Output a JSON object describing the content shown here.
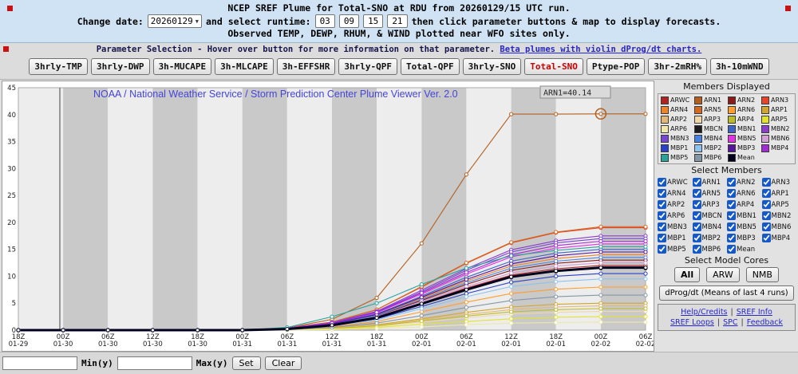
{
  "header": {
    "line1": "NCEP SREF Plume for Total-SNO at RDU from 20260129/15 UTC run.",
    "change_date_label": "Change date:",
    "date_value": "20260129",
    "runtime_label": "and select runtime:",
    "runtimes": [
      "03",
      "09",
      "15",
      "21"
    ],
    "line2_tail": "then click parameter buttons & map to display forecasts.",
    "line3": "Observed TEMP, DEWP, RHUM, & WIND plotted near WFO sites only."
  },
  "param_bar": {
    "info_text": "Parameter Selection - Hover over button for more information on that parameter.",
    "beta_link": "Beta plumes with violin dProg/dt charts.",
    "buttons": [
      "3hrly-TMP",
      "3hrly-DWP",
      "3h-MUCAPE",
      "3h-MLCAPE",
      "3h-EFFSHR",
      "3hrly-QPF",
      "Total-QPF",
      "3hrly-SNO",
      "Total-SNO",
      "Ptype-POP",
      "3hr-2mRH%",
      "3h-10mWND"
    ],
    "active_button": "Total-SNO"
  },
  "chart_data": {
    "type": "line",
    "title": "NOAA / National Weather Service / Storm Prediction Center Plume Viewer Ver. 2.0",
    "ylabel": "",
    "xlabel": "",
    "ylim": [
      0,
      45
    ],
    "yticks": [
      0,
      5,
      10,
      15,
      20,
      25,
      30,
      35,
      40,
      45
    ],
    "x_labels_time": [
      "18Z",
      "00Z",
      "06Z",
      "12Z",
      "18Z",
      "00Z",
      "06Z",
      "12Z",
      "18Z",
      "00Z",
      "06Z",
      "12Z",
      "18Z",
      "00Z",
      "06Z"
    ],
    "x_labels_date": [
      "01-29",
      "01-30",
      "01-30",
      "01-30",
      "01-30",
      "01-31",
      "01-31",
      "01-31",
      "01-31",
      "02-01",
      "02-01",
      "02-01",
      "02-01",
      "02-02",
      "02-02"
    ],
    "highlight": {
      "series": "ARN1",
      "x_index": 13,
      "value": 40.14,
      "label": "ARN1=40.14"
    },
    "series": [
      {
        "name": "ARWC",
        "color": "#b22222",
        "values": [
          0,
          0,
          0,
          0,
          0,
          0,
          0.2,
          1.0,
          2.4,
          5.0,
          7.8,
          10.2,
          11.4,
          12.0,
          12.0
        ]
      },
      {
        "name": "ARN1",
        "color": "#b45f1e",
        "values": [
          0,
          0,
          0,
          0,
          0,
          0,
          0.4,
          2.0,
          6.0,
          16.1,
          28.9,
          40.1,
          40.1,
          40.14,
          40.14
        ]
      },
      {
        "name": "ARN2",
        "color": "#8b1a1a",
        "values": [
          0,
          0,
          0,
          0,
          0,
          0,
          0.3,
          1.0,
          2.6,
          5.5,
          8.5,
          11.1,
          12.4,
          13.0,
          13.0
        ]
      },
      {
        "name": "ARN3",
        "color": "#e8442a",
        "values": [
          0,
          0,
          0,
          0,
          0,
          0,
          0.4,
          1.5,
          3.8,
          8.0,
          12.4,
          16.2,
          18.1,
          19.0,
          19.0
        ]
      },
      {
        "name": "ARN4",
        "color": "#f08228",
        "values": [
          0,
          0,
          0,
          0,
          0,
          0,
          0.3,
          1.1,
          2.8,
          5.9,
          9.1,
          11.9,
          13.3,
          14.0,
          14.0
        ]
      },
      {
        "name": "ARN5",
        "color": "#d2691e",
        "values": [
          0,
          0,
          0,
          0,
          0,
          0,
          0.4,
          1.5,
          3.8,
          8.1,
          12.5,
          16.3,
          18.2,
          19.2,
          19.2
        ]
      },
      {
        "name": "ARN6",
        "color": "#ff9d2e",
        "values": [
          0,
          0,
          0,
          0,
          0,
          0,
          0.2,
          0.6,
          1.6,
          3.4,
          5.2,
          6.8,
          7.6,
          8.0,
          8.0
        ]
      },
      {
        "name": "ARP1",
        "color": "#d2a62e",
        "values": [
          0,
          0,
          0,
          0,
          0,
          0,
          0.1,
          0.4,
          1.0,
          2.1,
          3.3,
          4.3,
          4.8,
          5.0,
          5.0
        ]
      },
      {
        "name": "ARP2",
        "color": "#e3b877",
        "values": [
          0,
          0,
          0,
          0,
          0,
          0,
          0.1,
          0.4,
          0.9,
          1.9,
          2.9,
          3.8,
          4.3,
          4.5,
          4.5
        ]
      },
      {
        "name": "ARP3",
        "color": "#f0d7a7",
        "values": [
          0,
          0,
          0,
          0,
          0,
          0,
          0.1,
          0.3,
          0.7,
          1.5,
          2.3,
          3.0,
          3.3,
          3.5,
          3.5
        ]
      },
      {
        "name": "ARP4",
        "color": "#bcbc28",
        "values": [
          0,
          0,
          0,
          0,
          0,
          0,
          0.1,
          0.3,
          0.8,
          1.7,
          2.6,
          3.4,
          3.8,
          4.0,
          4.0
        ]
      },
      {
        "name": "ARP5",
        "color": "#e3e32e",
        "values": [
          0,
          0,
          0,
          0,
          0,
          0,
          0.1,
          0.2,
          0.5,
          1.1,
          1.6,
          2.1,
          2.4,
          2.5,
          2.5
        ]
      },
      {
        "name": "ARP6",
        "color": "#eee8aa",
        "values": [
          0,
          0,
          0,
          0,
          0,
          0,
          0,
          0.1,
          0.3,
          0.6,
          1.0,
          1.3,
          1.4,
          1.5,
          1.5
        ]
      },
      {
        "name": "MBCN",
        "color": "#1c1c1c",
        "values": [
          0,
          0,
          0,
          0,
          0,
          0,
          0.2,
          0.9,
          2.3,
          4.8,
          7.5,
          9.8,
          10.9,
          11.5,
          11.5
        ]
      },
      {
        "name": "MBN1",
        "color": "#3c64c8",
        "values": [
          0,
          0,
          0,
          0,
          0,
          0,
          0.3,
          1.2,
          3.0,
          6.3,
          9.8,
          12.8,
          14.3,
          15.0,
          15.0
        ]
      },
      {
        "name": "MBN2",
        "color": "#8c3cc8",
        "values": [
          0,
          0,
          0,
          0,
          0,
          0,
          0.4,
          1.4,
          3.5,
          7.4,
          11.4,
          14.9,
          16.6,
          17.5,
          17.5
        ]
      },
      {
        "name": "MBN3",
        "color": "#7846d2",
        "values": [
          0,
          0,
          0,
          0,
          0,
          0,
          0.3,
          1.4,
          3.4,
          7.1,
          11.1,
          14.5,
          16.2,
          17.0,
          17.0
        ]
      },
      {
        "name": "MBN4",
        "color": "#4682e1",
        "values": [
          0,
          0,
          0,
          0,
          0,
          0,
          0.3,
          1.1,
          2.7,
          5.7,
          8.8,
          11.5,
          12.8,
          13.5,
          13.5
        ]
      },
      {
        "name": "MBN5",
        "color": "#e632e6",
        "values": [
          0,
          0,
          0,
          0,
          0,
          0,
          0.3,
          1.3,
          3.2,
          6.7,
          10.4,
          13.6,
          15.2,
          16.0,
          16.0
        ]
      },
      {
        "name": "MBN6",
        "color": "#d49fd4",
        "values": [
          0,
          0,
          0,
          0,
          0,
          0,
          0.3,
          1.0,
          2.5,
          5.3,
          8.1,
          10.6,
          11.9,
          12.5,
          12.5
        ]
      },
      {
        "name": "MBP1",
        "color": "#2841c8",
        "values": [
          0,
          0,
          0,
          0,
          0,
          0,
          0.2,
          0.8,
          2.1,
          4.4,
          6.8,
          8.9,
          10.0,
          10.5,
          10.5
        ]
      },
      {
        "name": "MBP2",
        "color": "#8cc3ee",
        "values": [
          0,
          0,
          0,
          0,
          0,
          0,
          0.2,
          0.8,
          1.9,
          4.0,
          6.2,
          8.1,
          9.0,
          9.5,
          9.5
        ]
      },
      {
        "name": "MBP3",
        "color": "#55149b",
        "values": [
          0,
          0,
          0,
          0,
          0,
          0,
          0.3,
          1.2,
          2.9,
          6.1,
          9.4,
          12.3,
          13.8,
          14.5,
          14.5
        ]
      },
      {
        "name": "MBP4",
        "color": "#a32cd4",
        "values": [
          0,
          0,
          0,
          0,
          0,
          0,
          0.3,
          1.3,
          3.3,
          6.9,
          10.7,
          14.0,
          15.7,
          16.5,
          16.5
        ]
      },
      {
        "name": "MBP5",
        "color": "#28a29b",
        "values": [
          0,
          0,
          0,
          0,
          0,
          0,
          0.5,
          2.5,
          5.0,
          8.5,
          11.5,
          13.8,
          14.8,
          15.5,
          15.5
        ]
      },
      {
        "name": "MBP6",
        "color": "#8496a5",
        "values": [
          0,
          0,
          0,
          0,
          0,
          0,
          0.1,
          0.5,
          1.3,
          2.7,
          4.2,
          5.5,
          6.2,
          6.5,
          6.5
        ]
      },
      {
        "name": "Mean",
        "color": "#00001e",
        "values": [
          0,
          0,
          0,
          0,
          0,
          0,
          0.2,
          0.9,
          2.3,
          4.9,
          7.5,
          9.9,
          11.0,
          11.6,
          11.6
        ]
      }
    ]
  },
  "sidebar": {
    "members_displayed_title": "Members Displayed",
    "select_members_title": "Select Members",
    "select_cores_title": "Select Model Cores",
    "core_buttons": [
      "All",
      "ARW",
      "NMB"
    ],
    "active_core": "All",
    "dprog_button": "dProg/dt (Means of last 4 runs)",
    "links_row1": [
      "Help/Credits",
      "SREF Info"
    ],
    "links_row2": [
      "SREF Loops",
      "SPC",
      "Feedback"
    ]
  },
  "footer": {
    "min_label": "Min(y)",
    "max_label": "Max(y)",
    "set_label": "Set",
    "clear_label": "Clear"
  }
}
